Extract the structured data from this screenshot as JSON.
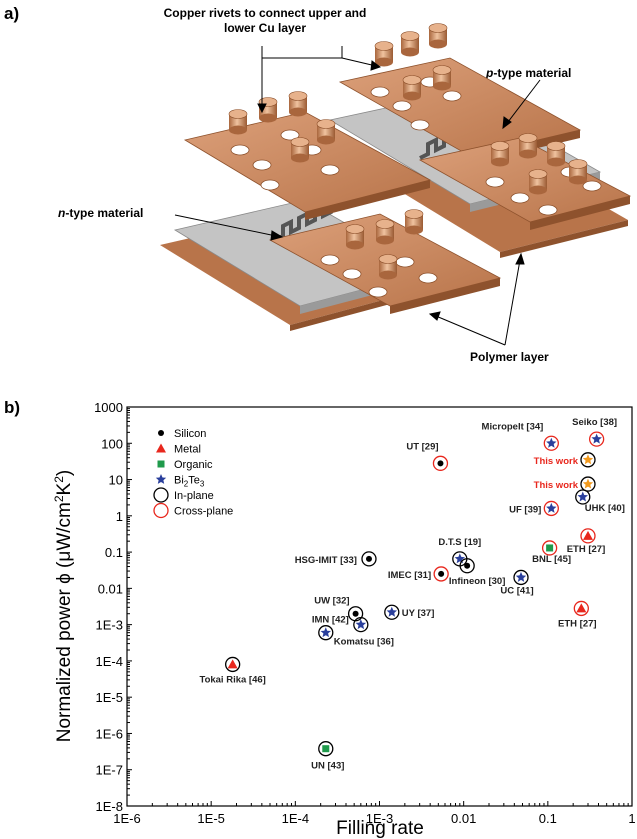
{
  "panel_a": {
    "label": "a)",
    "callouts": {
      "rivets": [
        "Copper rivets to connect upper and",
        "lower Cu layer"
      ],
      "ptype_italic": "p",
      "ptype_rest": "-type material",
      "ntype_italic": "n",
      "ntype_rest": "-type material",
      "polymer": "Polymer layer"
    },
    "colors": {
      "copper": "#c8865a",
      "copper_dark": "#9a5a33",
      "polymer": "#b9b9b9",
      "track": "#555555"
    }
  },
  "panel_b": {
    "label": "b)",
    "chart_data": {
      "type": "scatter",
      "x_scale": "log",
      "y_scale": "log",
      "xlabel": "Filling rate",
      "ylabel_main": "Normalized power ϕ (μW/cm",
      "ylabel_sup": "2",
      "ylabel_mid": "K",
      "ylabel_end": ")",
      "xlim": [
        1e-06,
        1
      ],
      "ylim": [
        1e-08,
        1000
      ],
      "x_ticks": [
        "1E-6",
        "1E-5",
        "1E-4",
        "1E-3",
        "0.01",
        "0.1",
        "1"
      ],
      "y_ticks": [
        "1E-8",
        "1E-7",
        "1E-6",
        "1E-5",
        "1E-4",
        "1E-3",
        "0.01",
        "0.1",
        "1",
        "10",
        "100",
        "1000"
      ],
      "legend": {
        "placement": "top-left",
        "entries": [
          {
            "text": "Silicon",
            "marker": "dot",
            "color": "#000000"
          },
          {
            "text": "Metal",
            "marker": "triangle",
            "color": "#e8271d"
          },
          {
            "text": "Organic",
            "marker": "square",
            "color": "#1f9a4b"
          },
          {
            "text": "Bi",
            "sub": "2",
            "text2": "Te",
            "sub2": "3",
            "marker": "star",
            "color": "#2a3f9c"
          },
          {
            "text": "In-plane",
            "marker": "ring",
            "color": "#000000"
          },
          {
            "text": "Cross-plane",
            "marker": "ring",
            "color": "#e8271d"
          }
        ]
      },
      "points": [
        {
          "label": "UT [29]",
          "x": 0.0053,
          "y": 28,
          "material": "Silicon",
          "ring": "cross"
        },
        {
          "label": "Micropelt [34]",
          "x": 0.11,
          "y": 100,
          "material": "Bi2Te3",
          "ring": "cross"
        },
        {
          "label": "Seiko [38]",
          "x": 0.38,
          "y": 130,
          "material": "Bi2Te3",
          "ring": "cross"
        },
        {
          "label": "This work",
          "x": 0.3,
          "y": 35,
          "material": "Bi2Te3o",
          "ring": "in",
          "highlight": true
        },
        {
          "label": "This work",
          "x": 0.3,
          "y": 7.5,
          "material": "Bi2Te3o",
          "ring": "in",
          "highlight": true
        },
        {
          "label": "UF [39]",
          "x": 0.11,
          "y": 1.6,
          "material": "Bi2Te3",
          "ring": "cross"
        },
        {
          "label": "UHK [40]",
          "x": 0.26,
          "y": 3.3,
          "material": "Bi2Te3",
          "ring": "in"
        },
        {
          "label": "ETH [27]",
          "x": 0.3,
          "y": 0.28,
          "material": "Metal",
          "ring": "cross"
        },
        {
          "label": "BNL [45]",
          "x": 0.105,
          "y": 0.13,
          "material": "Organic",
          "ring": "cross"
        },
        {
          "label": "D.T.S [19]",
          "x": 0.009,
          "y": 0.065,
          "material": "Bi2Te3",
          "ring": "in"
        },
        {
          "label": "Infineon [30]",
          "x": 0.011,
          "y": 0.042,
          "material": "Silicon",
          "ring": "in"
        },
        {
          "label": "HSG-IMIT [33]",
          "x": 0.00075,
          "y": 0.065,
          "material": "Silicon",
          "ring": "in"
        },
        {
          "label": "IMEC [31]",
          "x": 0.0054,
          "y": 0.025,
          "material": "Silicon",
          "ring": "cross"
        },
        {
          "label": "UC [41]",
          "x": 0.048,
          "y": 0.02,
          "material": "Bi2Te3",
          "ring": "in"
        },
        {
          "label": "ETH [27]",
          "x": 0.25,
          "y": 0.0028,
          "material": "Metal",
          "ring": "cross"
        },
        {
          "label": "UW [32]",
          "x": 0.00052,
          "y": 0.002,
          "material": "Silicon",
          "ring": "in"
        },
        {
          "label": "UY [37]",
          "x": 0.0014,
          "y": 0.0022,
          "material": "Bi2Te3",
          "ring": "in"
        },
        {
          "label": "IMN [42]",
          "x": 0.0006,
          "y": 0.001,
          "material": "Bi2Te3",
          "ring": "in"
        },
        {
          "label": "Komatsu [36]",
          "x": 0.00023,
          "y": 0.0006,
          "material": "Bi2Te3",
          "ring": "in"
        },
        {
          "label": "Tokai Rika [46]",
          "x": 1.8e-05,
          "y": 8e-05,
          "material": "Metal",
          "ring": "in"
        },
        {
          "label": "UN [43]",
          "x": 0.00023,
          "y": 3.8e-07,
          "material": "Organic",
          "ring": "in"
        }
      ]
    }
  }
}
